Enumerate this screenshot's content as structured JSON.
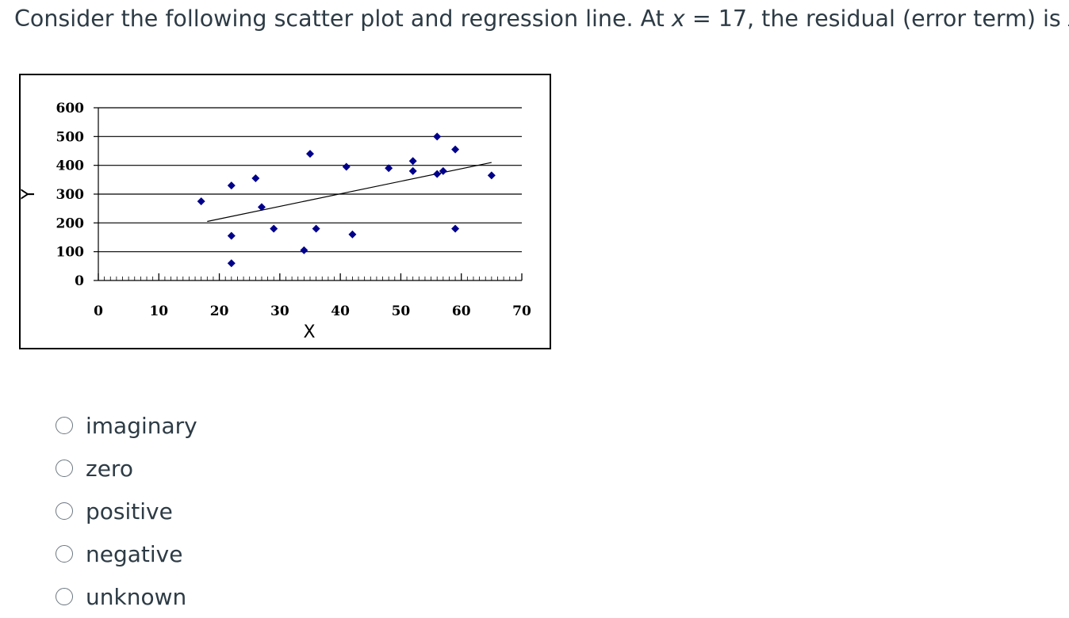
{
  "question": {
    "prefix": "Consider the following scatter plot and regression line. At ",
    "math_var": "x",
    "middle": " = 17, the residual (error term) is ",
    "suffix": "."
  },
  "chart_data": {
    "type": "scatter",
    "title": "",
    "xlabel": "X",
    "ylabel": "Y",
    "xlim": [
      0,
      70
    ],
    "ylim": [
      0,
      600
    ],
    "x_ticks": [
      0,
      10,
      20,
      30,
      40,
      50,
      60,
      70
    ],
    "y_ticks": [
      0,
      100,
      200,
      300,
      400,
      500,
      600
    ],
    "grid": "horizontal",
    "marker_color": "#00008B",
    "points": [
      {
        "x": 17,
        "y": 275
      },
      {
        "x": 22,
        "y": 330
      },
      {
        "x": 22,
        "y": 155
      },
      {
        "x": 22,
        "y": 60
      },
      {
        "x": 26,
        "y": 355
      },
      {
        "x": 27,
        "y": 255
      },
      {
        "x": 29,
        "y": 180
      },
      {
        "x": 34,
        "y": 105
      },
      {
        "x": 35,
        "y": 440
      },
      {
        "x": 36,
        "y": 180
      },
      {
        "x": 41,
        "y": 395
      },
      {
        "x": 42,
        "y": 160
      },
      {
        "x": 48,
        "y": 390
      },
      {
        "x": 52,
        "y": 415
      },
      {
        "x": 52,
        "y": 380
      },
      {
        "x": 56,
        "y": 500
      },
      {
        "x": 56,
        "y": 370
      },
      {
        "x": 57,
        "y": 380
      },
      {
        "x": 59,
        "y": 455
      },
      {
        "x": 59,
        "y": 180
      },
      {
        "x": 65,
        "y": 365
      }
    ],
    "regression_line": {
      "x1": 18,
      "y1": 205,
      "x2": 65,
      "y2": 410
    }
  },
  "options": [
    {
      "label": "imaginary"
    },
    {
      "label": "zero"
    },
    {
      "label": "positive"
    },
    {
      "label": "negative"
    },
    {
      "label": "unknown"
    }
  ]
}
